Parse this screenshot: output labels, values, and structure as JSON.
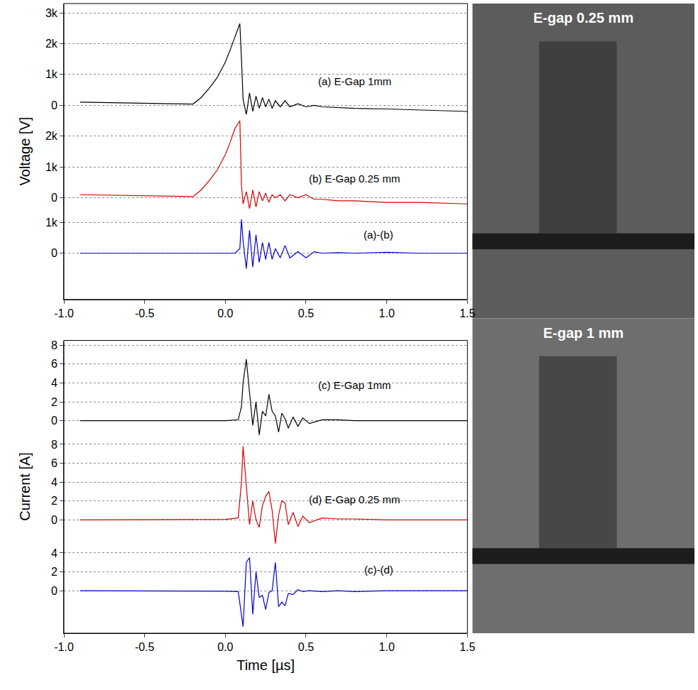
{
  "chart_data": [
    {
      "type": "line",
      "ylabel": "Voltage [V]",
      "xlim": [
        -1,
        1.5
      ],
      "xticks": [
        {
          "value": -1,
          "label": "-1.0"
        },
        {
          "value": -0.5,
          "label": "-0.5"
        },
        {
          "value": 0,
          "label": "0.0"
        },
        {
          "value": 0.5,
          "label": "0.5"
        },
        {
          "value": 1,
          "label": "1.0"
        },
        {
          "value": 1.5,
          "label": "1.5"
        }
      ],
      "grid": true,
      "x": [
        -0.9,
        -0.6,
        -0.3,
        -0.2,
        -0.15,
        -0.1,
        -0.05,
        0,
        0.03,
        0.06,
        0.09,
        0.1,
        0.11,
        0.13,
        0.15,
        0.17,
        0.19,
        0.21,
        0.23,
        0.25,
        0.27,
        0.29,
        0.31,
        0.34,
        0.37,
        0.4,
        0.45,
        0.5,
        0.55,
        0.6,
        0.7,
        0.8,
        1.0,
        1.2,
        1.5
      ],
      "series": [
        {
          "name": "(a) E-Gap 1mm",
          "color": "#000000",
          "ylim": [
            -300,
            3300
          ],
          "yticks": [
            0,
            {
              "value": 1000,
              "label": "1k"
            },
            {
              "value": 2000,
              "label": "2k"
            },
            {
              "value": 3000,
              "label": "3k"
            }
          ],
          "values": [
            100,
            80,
            50,
            40,
            250,
            550,
            900,
            1400,
            1800,
            2250,
            2650,
            1500,
            200,
            -300,
            400,
            -200,
            300,
            -100,
            250,
            -50,
            200,
            -100,
            150,
            -50,
            150,
            -50,
            50,
            -50,
            0,
            -50,
            -80,
            -100,
            -120,
            -150,
            -200
          ]
        },
        {
          "name": "(b) E-Gap 0.25 mm",
          "color": "#d40000",
          "ylim": [
            -500,
            2700
          ],
          "yticks": [
            0,
            {
              "value": 1000,
              "label": "1k"
            },
            {
              "value": 2000,
              "label": "2k"
            }
          ],
          "values": [
            100,
            80,
            50,
            40,
            250,
            550,
            900,
            1400,
            1800,
            2250,
            2500,
            400,
            -200,
            200,
            -350,
            250,
            -300,
            200,
            -100,
            150,
            -150,
            100,
            0,
            100,
            -100,
            100,
            0,
            100,
            -50,
            -50,
            -100,
            -100,
            -150,
            -150,
            -200
          ]
        },
        {
          "name": "(a)-(b)",
          "color": "#0000cc",
          "ylim": [
            -1500,
            1300
          ],
          "yticks": [
            0,
            {
              "value": 1000,
              "label": "1k"
            }
          ],
          "values": [
            0,
            0,
            0,
            0,
            0,
            0,
            0,
            0,
            0,
            0,
            150,
            1100,
            400,
            -500,
            750,
            -450,
            600,
            -300,
            350,
            -200,
            350,
            -200,
            150,
            -150,
            250,
            -150,
            50,
            -150,
            50,
            0,
            20,
            0,
            30,
            0,
            0
          ]
        }
      ]
    },
    {
      "type": "line",
      "ylabel": "Current [A]",
      "xlabel": "Time [µs]",
      "xlim": [
        -1,
        1.5
      ],
      "xticks": [
        {
          "value": -1,
          "label": "-1.0"
        },
        {
          "value": -0.5,
          "label": "-0.5"
        },
        {
          "value": 0,
          "label": "0.0"
        },
        {
          "value": 0.5,
          "label": "0.5"
        },
        {
          "value": 1,
          "label": "1.0"
        },
        {
          "value": 1.5,
          "label": "1.5"
        }
      ],
      "grid": true,
      "x": [
        -0.9,
        -0.5,
        0,
        0.08,
        0.1,
        0.11,
        0.13,
        0.15,
        0.17,
        0.19,
        0.21,
        0.23,
        0.25,
        0.27,
        0.29,
        0.31,
        0.33,
        0.35,
        0.37,
        0.39,
        0.42,
        0.45,
        0.48,
        0.52,
        0.6,
        0.7,
        0.8,
        1.0,
        1.5
      ],
      "series": [
        {
          "name": "(c) E-Gap 1mm",
          "color": "#000000",
          "ylim": [
            -2,
            8.5
          ],
          "yticks": [
            0,
            2,
            4,
            6,
            8
          ],
          "values": [
            0,
            0,
            0,
            0.1,
            1.5,
            4,
            6.5,
            3,
            -0.5,
            2,
            -1.5,
            1,
            0.5,
            2.8,
            1,
            0.5,
            -1.2,
            0.8,
            0.2,
            -0.8,
            0.4,
            -0.6,
            0.3,
            -0.3,
            0.1,
            0.1,
            0,
            0,
            0
          ]
        },
        {
          "name": "(d) E-Gap 0.25 mm",
          "color": "#d40000",
          "ylim": [
            -3,
            8.5
          ],
          "yticks": [
            0,
            2,
            4,
            6,
            8
          ],
          "values": [
            0,
            0,
            0.05,
            0.2,
            4,
            7.8,
            3.5,
            -0.5,
            2,
            0,
            -0.8,
            1.5,
            2.5,
            3,
            1,
            -2.5,
            0.5,
            2,
            1.8,
            -0.5,
            0.8,
            -0.7,
            0.4,
            -0.3,
            0.2,
            0.1,
            0.1,
            0,
            0
          ]
        },
        {
          "name": "(c)-(d)",
          "color": "#0000cc",
          "ylim": [
            -4.5,
            4.5
          ],
          "yticks": [
            0,
            2,
            4
          ],
          "values": [
            0,
            0,
            -0.05,
            -0.1,
            -2.5,
            -3.8,
            3,
            3.5,
            -2.5,
            2,
            -0.7,
            -0.5,
            -2,
            -0.2,
            0,
            3,
            -1.7,
            -1.2,
            -1.6,
            -0.3,
            -0.4,
            0.1,
            -0.1,
            0,
            -0.1,
            0,
            -0.1,
            0,
            0
          ]
        }
      ]
    }
  ],
  "images": [
    {
      "label": "E-gap 0.25 mm"
    },
    {
      "label": "E-gap 1 mm"
    }
  ]
}
